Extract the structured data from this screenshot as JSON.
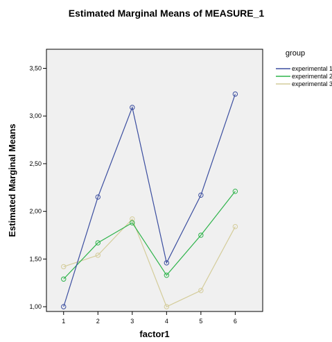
{
  "chart_data": {
    "type": "line",
    "title": "Estimated Marginal Means of MEASURE_1",
    "xlabel": "factor1",
    "ylabel": "Estimated Marginal Means",
    "categories": [
      "1",
      "2",
      "3",
      "4",
      "5",
      "6"
    ],
    "y_ticks": [
      "1,00",
      "1,50",
      "2,00",
      "2,50",
      "3,00",
      "3,50"
    ],
    "y_tick_values": [
      1.0,
      1.5,
      2.0,
      2.5,
      3.0,
      3.5
    ],
    "ylim": [
      0.95,
      3.7
    ],
    "grid": false,
    "plot_background": "#f0f0f0",
    "legend": {
      "title": "group",
      "placement": "right"
    },
    "series": [
      {
        "name": "experimental 1",
        "color": "#3a4d9f",
        "values": [
          1.0,
          2.15,
          3.09,
          1.46,
          2.17,
          3.23
        ]
      },
      {
        "name": "experimental 2",
        "color": "#2db34a",
        "values": [
          1.29,
          1.67,
          1.88,
          1.33,
          1.75,
          2.21
        ]
      },
      {
        "name": "experimental 3",
        "color": "#d4cc9a",
        "values": [
          1.42,
          1.54,
          1.92,
          1.0,
          1.17,
          1.84
        ]
      }
    ]
  }
}
